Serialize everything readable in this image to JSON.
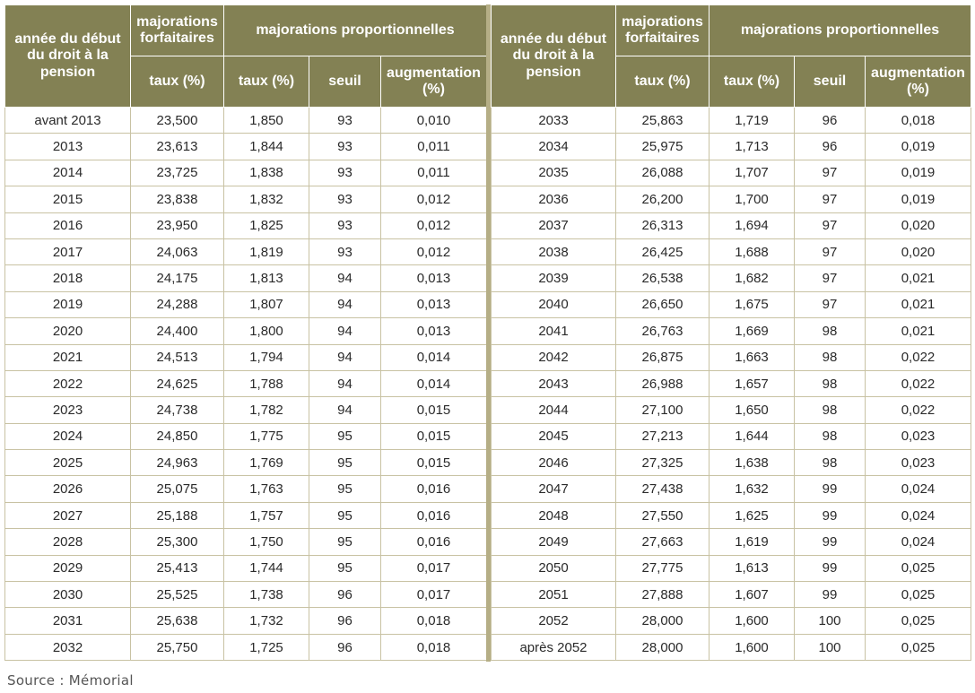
{
  "headers": {
    "year": "année du début du droit à la pension",
    "flat": "majorations forfaitaires",
    "proportional": "majorations proportionnelles",
    "rate": "taux (%)",
    "threshold": "seuil",
    "increase": "augmentation (%)"
  },
  "left_rows": [
    {
      "year": "avant 2013",
      "flat": "23,500",
      "rate": "1,850",
      "threshold": "93",
      "increase": "0,010"
    },
    {
      "year": "2013",
      "flat": "23,613",
      "rate": "1,844",
      "threshold": "93",
      "increase": "0,011"
    },
    {
      "year": "2014",
      "flat": "23,725",
      "rate": "1,838",
      "threshold": "93",
      "increase": "0,011"
    },
    {
      "year": "2015",
      "flat": "23,838",
      "rate": "1,832",
      "threshold": "93",
      "increase": "0,012"
    },
    {
      "year": "2016",
      "flat": "23,950",
      "rate": "1,825",
      "threshold": "93",
      "increase": "0,012"
    },
    {
      "year": "2017",
      "flat": "24,063",
      "rate": "1,819",
      "threshold": "93",
      "increase": "0,012"
    },
    {
      "year": "2018",
      "flat": "24,175",
      "rate": "1,813",
      "threshold": "94",
      "increase": "0,013"
    },
    {
      "year": "2019",
      "flat": "24,288",
      "rate": "1,807",
      "threshold": "94",
      "increase": "0,013"
    },
    {
      "year": "2020",
      "flat": "24,400",
      "rate": "1,800",
      "threshold": "94",
      "increase": "0,013"
    },
    {
      "year": "2021",
      "flat": "24,513",
      "rate": "1,794",
      "threshold": "94",
      "increase": "0,014"
    },
    {
      "year": "2022",
      "flat": "24,625",
      "rate": "1,788",
      "threshold": "94",
      "increase": "0,014"
    },
    {
      "year": "2023",
      "flat": "24,738",
      "rate": "1,782",
      "threshold": "94",
      "increase": "0,015"
    },
    {
      "year": "2024",
      "flat": "24,850",
      "rate": "1,775",
      "threshold": "95",
      "increase": "0,015"
    },
    {
      "year": "2025",
      "flat": "24,963",
      "rate": "1,769",
      "threshold": "95",
      "increase": "0,015"
    },
    {
      "year": "2026",
      "flat": "25,075",
      "rate": "1,763",
      "threshold": "95",
      "increase": "0,016"
    },
    {
      "year": "2027",
      "flat": "25,188",
      "rate": "1,757",
      "threshold": "95",
      "increase": "0,016"
    },
    {
      "year": "2028",
      "flat": "25,300",
      "rate": "1,750",
      "threshold": "95",
      "increase": "0,016"
    },
    {
      "year": "2029",
      "flat": "25,413",
      "rate": "1,744",
      "threshold": "95",
      "increase": "0,017"
    },
    {
      "year": "2030",
      "flat": "25,525",
      "rate": "1,738",
      "threshold": "96",
      "increase": "0,017"
    },
    {
      "year": "2031",
      "flat": "25,638",
      "rate": "1,732",
      "threshold": "96",
      "increase": "0,018"
    },
    {
      "year": "2032",
      "flat": "25,750",
      "rate": "1,725",
      "threshold": "96",
      "increase": "0,018"
    }
  ],
  "right_rows": [
    {
      "year": "2033",
      "flat": "25,863",
      "rate": "1,719",
      "threshold": "96",
      "increase": "0,018"
    },
    {
      "year": "2034",
      "flat": "25,975",
      "rate": "1,713",
      "threshold": "96",
      "increase": "0,019"
    },
    {
      "year": "2035",
      "flat": "26,088",
      "rate": "1,707",
      "threshold": "97",
      "increase": "0,019"
    },
    {
      "year": "2036",
      "flat": "26,200",
      "rate": "1,700",
      "threshold": "97",
      "increase": "0,019"
    },
    {
      "year": "2037",
      "flat": "26,313",
      "rate": "1,694",
      "threshold": "97",
      "increase": "0,020"
    },
    {
      "year": "2038",
      "flat": "26,425",
      "rate": "1,688",
      "threshold": "97",
      "increase": "0,020"
    },
    {
      "year": "2039",
      "flat": "26,538",
      "rate": "1,682",
      "threshold": "97",
      "increase": "0,021"
    },
    {
      "year": "2040",
      "flat": "26,650",
      "rate": "1,675",
      "threshold": "97",
      "increase": "0,021"
    },
    {
      "year": "2041",
      "flat": "26,763",
      "rate": "1,669",
      "threshold": "98",
      "increase": "0,021"
    },
    {
      "year": "2042",
      "flat": "26,875",
      "rate": "1,663",
      "threshold": "98",
      "increase": "0,022"
    },
    {
      "year": "2043",
      "flat": "26,988",
      "rate": "1,657",
      "threshold": "98",
      "increase": "0,022"
    },
    {
      "year": "2044",
      "flat": "27,100",
      "rate": "1,650",
      "threshold": "98",
      "increase": "0,022"
    },
    {
      "year": "2045",
      "flat": "27,213",
      "rate": "1,644",
      "threshold": "98",
      "increase": "0,023"
    },
    {
      "year": "2046",
      "flat": "27,325",
      "rate": "1,638",
      "threshold": "98",
      "increase": "0,023"
    },
    {
      "year": "2047",
      "flat": "27,438",
      "rate": "1,632",
      "threshold": "99",
      "increase": "0,024"
    },
    {
      "year": "2048",
      "flat": "27,550",
      "rate": "1,625",
      "threshold": "99",
      "increase": "0,024"
    },
    {
      "year": "2049",
      "flat": "27,663",
      "rate": "1,619",
      "threshold": "99",
      "increase": "0,024"
    },
    {
      "year": "2050",
      "flat": "27,775",
      "rate": "1,613",
      "threshold": "99",
      "increase": "0,025"
    },
    {
      "year": "2051",
      "flat": "27,888",
      "rate": "1,607",
      "threshold": "99",
      "increase": "0,025"
    },
    {
      "year": "2052",
      "flat": "28,000",
      "rate": "1,600",
      "threshold": "100",
      "increase": "0,025"
    },
    {
      "year": "après 2052",
      "flat": "28,000",
      "rate": "1,600",
      "threshold": "100",
      "increase": "0,025"
    }
  ],
  "source": "Source : Mémorial",
  "colors": {
    "header_bg": "#838154",
    "divider": "#b5ae86",
    "grid": "#c8c2a3"
  }
}
